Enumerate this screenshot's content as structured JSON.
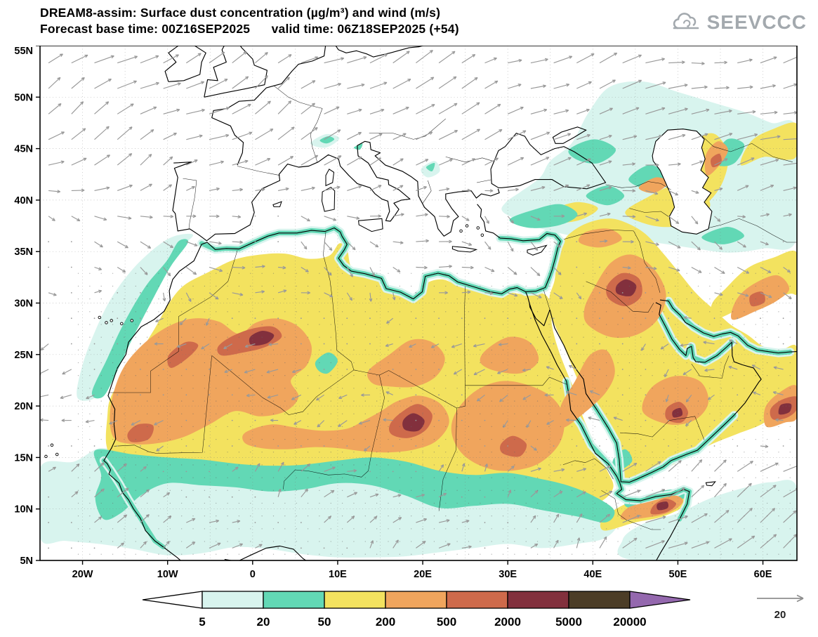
{
  "header": {
    "title_line1": "DREAM8-assim: Surface dust concentration (µg/m³) and wind (m/s)",
    "title_line2": "Forecast base time: 00Z16SEP2025      valid time: 06Z18SEP2025 (+54)",
    "logo_text": "SEEVCCC"
  },
  "map": {
    "lat_labels": [
      "55N",
      "50N",
      "45N",
      "40N",
      "35N",
      "30N",
      "25N",
      "20N",
      "15N",
      "10N",
      "5N"
    ],
    "lon_labels": [
      "20W",
      "10W",
      "0",
      "10E",
      "20E",
      "30E",
      "40E",
      "50E",
      "60E"
    ]
  },
  "colorbar": {
    "tick_labels": [
      "5",
      "20",
      "50",
      "200",
      "500",
      "2000",
      "5000",
      "20000"
    ]
  },
  "wind_reference": {
    "label": "20"
  },
  "chart_data": {
    "type": "filled_contour_map",
    "title": "DREAM8-assim: Surface dust concentration (µg/m³) and wind (m/s)",
    "forecast_base_time": "00Z16SEP2025",
    "valid_time": "06Z18SEP2025",
    "lead_hours": 54,
    "variable": "surface dust concentration",
    "units": "µg/m³",
    "wind_units": "m/s",
    "wind_reference_speed": 20,
    "domain": {
      "lon_min": -25,
      "lon_max": 64,
      "lat_min": 5,
      "lat_max": 55
    },
    "lat_ticks": [
      55,
      50,
      45,
      40,
      35,
      30,
      25,
      20,
      15,
      10,
      5
    ],
    "lon_ticks": [
      -20,
      -10,
      0,
      10,
      20,
      30,
      40,
      50,
      60
    ],
    "contour_levels": [
      5,
      20,
      50,
      200,
      500,
      2000,
      5000,
      20000
    ],
    "palette": [
      "#ffffff",
      "#d8f4ee",
      "#62d8b5",
      "#f3e25f",
      "#f0a55d",
      "#ce6a4b",
      "#82303d",
      "#4c3d27",
      "#9468ae"
    ],
    "arrow_color": "#999999",
    "grid_on": true,
    "notable_features": [
      {
        "region": "central Mali / southern Algeria (~0E, 26N)",
        "max_range_ugm3": "2000-5000"
      },
      {
        "region": "Bodele / Chad (~19E, 18.5N)",
        "max_range_ugm3": "2000-5000"
      },
      {
        "region": "NE Saudi Arabia / Iraq (~44E, 31N)",
        "max_range_ugm3": "2000-5000"
      },
      {
        "region": "eastern Saudi Arabia (~50E, 19.5N)",
        "max_range_ugm3": "2000-5000"
      },
      {
        "region": "northern Somalia (~48.5E, 10.5N)",
        "max_range_ugm3": "2000-5000"
      },
      {
        "region": "SE Iran / Makran coast (~62E, 20N)",
        "max_range_ugm3": "2000-5000"
      },
      {
        "region": "Sahara-Sahel belt 15N-32N",
        "typical_range_ugm3": "50-500"
      },
      {
        "region": "Arabian Peninsula",
        "typical_range_ugm3": "50-500"
      },
      {
        "region": "Anatolia / Caucasus / Caspian",
        "typical_range_ugm3": "5-200"
      }
    ]
  }
}
